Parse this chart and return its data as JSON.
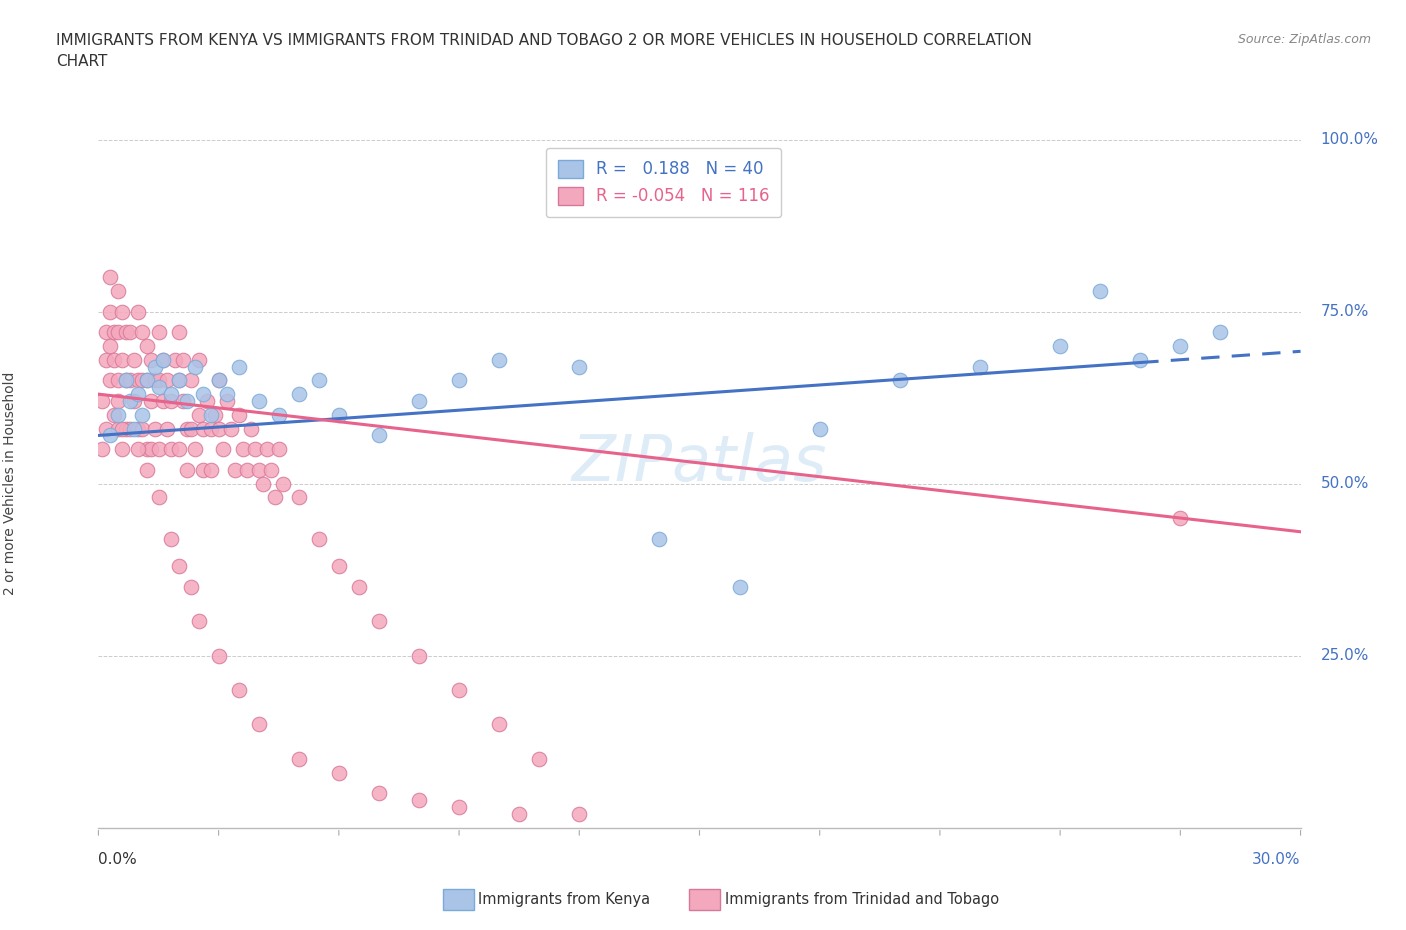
{
  "title_line1": "IMMIGRANTS FROM KENYA VS IMMIGRANTS FROM TRINIDAD AND TOBAGO 2 OR MORE VEHICLES IN HOUSEHOLD CORRELATION",
  "title_line2": "CHART",
  "source": "Source: ZipAtlas.com",
  "xlim": [
    0.0,
    30.0
  ],
  "ylim": [
    0.0,
    100.0
  ],
  "kenya_R": 0.188,
  "kenya_N": 40,
  "tt_R": -0.054,
  "tt_N": 116,
  "kenya_color": "#aac4e8",
  "tt_color": "#f4a8be",
  "kenya_line_color": "#4472C4",
  "tt_line_color": "#e8638c",
  "kenya_edge_color": "#7aaad8",
  "tt_edge_color": "#d87898",
  "watermark_color": "#d0e4f4",
  "background_color": "#ffffff",
  "grid_color": "#cccccc",
  "kenya_scatter_x": [
    0.3,
    0.5,
    0.7,
    0.8,
    0.9,
    1.0,
    1.1,
    1.2,
    1.4,
    1.5,
    1.6,
    1.8,
    2.0,
    2.2,
    2.4,
    2.6,
    2.8,
    3.0,
    3.2,
    3.5,
    4.0,
    4.5,
    5.0,
    5.5,
    6.0,
    7.0,
    8.0,
    9.0,
    10.0,
    12.0,
    14.0,
    16.0,
    18.0,
    20.0,
    22.0,
    24.0,
    25.0,
    26.0,
    27.0,
    28.0
  ],
  "kenya_scatter_y": [
    57,
    60,
    65,
    62,
    58,
    63,
    60,
    65,
    67,
    64,
    68,
    63,
    65,
    62,
    67,
    63,
    60,
    65,
    63,
    67,
    62,
    60,
    63,
    65,
    60,
    57,
    62,
    65,
    68,
    67,
    42,
    35,
    58,
    65,
    67,
    70,
    78,
    68,
    70,
    72
  ],
  "tt_scatter_x": [
    0.1,
    0.1,
    0.2,
    0.2,
    0.2,
    0.3,
    0.3,
    0.3,
    0.3,
    0.4,
    0.4,
    0.4,
    0.5,
    0.5,
    0.5,
    0.5,
    0.6,
    0.6,
    0.6,
    0.7,
    0.7,
    0.7,
    0.8,
    0.8,
    0.8,
    0.9,
    0.9,
    1.0,
    1.0,
    1.0,
    1.1,
    1.1,
    1.1,
    1.2,
    1.2,
    1.2,
    1.3,
    1.3,
    1.3,
    1.4,
    1.4,
    1.5,
    1.5,
    1.5,
    1.6,
    1.6,
    1.7,
    1.7,
    1.8,
    1.8,
    1.9,
    2.0,
    2.0,
    2.0,
    2.1,
    2.1,
    2.2,
    2.2,
    2.3,
    2.3,
    2.4,
    2.5,
    2.5,
    2.6,
    2.6,
    2.7,
    2.8,
    2.8,
    2.9,
    3.0,
    3.0,
    3.1,
    3.2,
    3.3,
    3.4,
    3.5,
    3.6,
    3.7,
    3.8,
    3.9,
    4.0,
    4.1,
    4.2,
    4.3,
    4.4,
    4.5,
    4.6,
    5.0,
    5.5,
    6.0,
    6.5,
    7.0,
    8.0,
    9.0,
    10.0,
    11.0,
    0.5,
    0.6,
    1.0,
    1.2,
    1.5,
    1.8,
    2.0,
    2.3,
    2.5,
    3.0,
    3.5,
    4.0,
    5.0,
    6.0,
    7.0,
    8.0,
    9.0,
    10.5,
    12.0,
    27.0
  ],
  "tt_scatter_y": [
    55,
    62,
    68,
    72,
    58,
    75,
    80,
    65,
    70,
    72,
    68,
    60,
    72,
    65,
    78,
    58,
    68,
    75,
    55,
    65,
    72,
    58,
    72,
    65,
    58,
    68,
    62,
    75,
    65,
    58,
    72,
    65,
    58,
    70,
    65,
    55,
    68,
    62,
    55,
    65,
    58,
    72,
    65,
    55,
    68,
    62,
    58,
    65,
    62,
    55,
    68,
    72,
    65,
    55,
    68,
    62,
    58,
    52,
    65,
    58,
    55,
    68,
    60,
    58,
    52,
    62,
    58,
    52,
    60,
    65,
    58,
    55,
    62,
    58,
    52,
    60,
    55,
    52,
    58,
    55,
    52,
    50,
    55,
    52,
    48,
    55,
    50,
    48,
    42,
    38,
    35,
    30,
    25,
    20,
    15,
    10,
    62,
    58,
    55,
    52,
    48,
    42,
    38,
    35,
    30,
    25,
    20,
    15,
    10,
    8,
    5,
    4,
    3,
    2,
    2,
    45
  ]
}
